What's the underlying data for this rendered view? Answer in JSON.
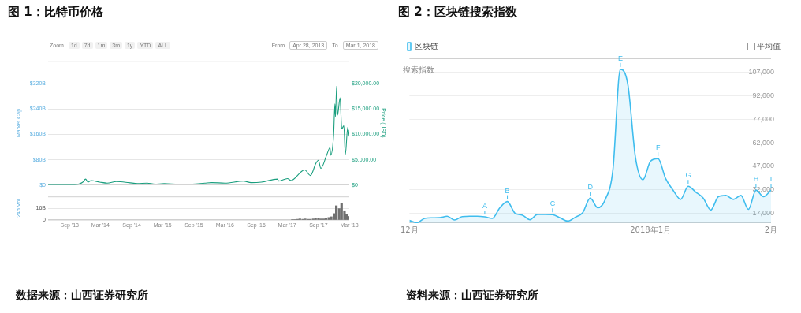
{
  "chart_data": [
    {
      "type": "line",
      "title": "图 1：比特币价格",
      "ylabel": "Market Cap",
      "y2label": "Price (USD)",
      "annotations": [
        "Zoom",
        "1d",
        "7d",
        "1m",
        "3m",
        "1y",
        "YTD",
        "ALL",
        "From",
        "Apr 28, 2013",
        "To",
        "Mar 1, 2018",
        "数据来源：山西证券研究所"
      ],
      "x": [
        "2013-04-28",
        "2013-07-05",
        "2013-10-01",
        "2013-11-18",
        "2013-12-04",
        "2013-12-18",
        "2014-01-05",
        "2014-02-25",
        "2014-04-10",
        "2014-06-03",
        "2014-08-15",
        "2014-10-05",
        "2014-12-01",
        "2015-01-14",
        "2015-03-10",
        "2015-06-01",
        "2015-08-24",
        "2015-11-04",
        "2015-12-15",
        "2016-03-01",
        "2016-06-17",
        "2016-08-02",
        "2016-10-01",
        "2017-01-04",
        "2017-01-11",
        "2017-03-03",
        "2017-03-24",
        "2017-05-25",
        "2017-06-12",
        "2017-07-16",
        "2017-08-17",
        "2017-09-01",
        "2017-09-15",
        "2017-10-20",
        "2017-11-08",
        "2017-11-12",
        "2017-11-29",
        "2017-12-07",
        "2017-12-10",
        "2017-12-17",
        "2017-12-22",
        "2018-01-06",
        "2018-01-16",
        "2018-01-28",
        "2018-02-06",
        "2018-02-20",
        "2018-02-24",
        "2018-03-01"
      ],
      "series": [
        {
          "color": "#1a9e7e",
          "axis": "y2",
          "values": [
            100,
            100,
            100,
            600,
            1200,
            600,
            900,
            600,
            400,
            700,
            500,
            300,
            400,
            200,
            300,
            200,
            200,
            400,
            500,
            400,
            800,
            500,
            600,
            1200,
            800,
            1300,
            900,
            2700,
            3000,
            1900,
            4300,
            4900,
            3300,
            6000,
            7400,
            5900,
            9800,
            16000,
            13500,
            19500,
            13800,
            17200,
            11100,
            11700,
            6000,
            11400,
            9600,
            10900
          ]
        }
      ],
      "xlim": [
        "2013-04-28",
        "2018-03-01"
      ],
      "ylim": [
        0,
        392
      ],
      "yticks": [
        {
          "value": 0,
          "label": "$0"
        },
        {
          "value": 80,
          "label": "$80B"
        },
        {
          "value": 160,
          "label": "$160B"
        },
        {
          "value": 240,
          "label": "$240B"
        },
        {
          "value": 320,
          "label": "$320B"
        }
      ],
      "y2lim": [
        0,
        24500
      ],
      "y2ticks": [
        {
          "value": 0,
          "label": "$0"
        },
        {
          "value": 5000,
          "label": "$5,000.00"
        },
        {
          "value": 10000,
          "label": "$10,000.00"
        },
        {
          "value": 15000,
          "label": "$15,000.00"
        },
        {
          "value": 20000,
          "label": "$20,000.00"
        }
      ],
      "grid": "y",
      "tick_labels": "y",
      "marker": "none"
    },
    {
      "type": "bar",
      "ylabel": "24h Vol",
      "color": "#707070",
      "x": [
        "2017-04-01",
        "2017-04-15",
        "2017-05-01",
        "2017-05-15",
        "2017-06-01",
        "2017-06-15",
        "2017-07-01",
        "2017-07-15",
        "2017-08-01",
        "2017-08-15",
        "2017-09-01",
        "2017-09-15",
        "2017-10-01",
        "2017-10-15",
        "2017-11-01",
        "2017-11-15",
        "2017-12-01",
        "2017-12-15",
        "2018-01-01",
        "2018-01-15",
        "2018-02-01",
        "2018-02-13",
        "2018-02-25"
      ],
      "values": [
        0.5,
        0.5,
        1,
        1.5,
        1,
        1.5,
        1,
        1,
        1.5,
        2.5,
        2,
        1.5,
        1.5,
        2,
        3.5,
        4.5,
        9,
        20,
        16,
        23,
        13,
        8,
        5
      ],
      "xlim": [
        "2013-04-28",
        "2018-03-01"
      ],
      "xticks": [
        {
          "value": "2013-09-01",
          "label": "Sep '13"
        },
        {
          "value": "2014-03-01",
          "label": "Mar '14"
        },
        {
          "value": "2014-09-01",
          "label": "Sep '14"
        },
        {
          "value": "2015-03-01",
          "label": "Mar '15"
        },
        {
          "value": "2015-09-01",
          "label": "Sep '15"
        },
        {
          "value": "2016-03-01",
          "label": "Mar '16"
        },
        {
          "value": "2016-09-01",
          "label": "Sep '16"
        },
        {
          "value": "2017-03-01",
          "label": "Mar '17"
        },
        {
          "value": "2017-09-01",
          "label": "Sep '17"
        },
        {
          "value": "2018-03-01",
          "label": "Mar '18"
        }
      ],
      "ylim": [
        0,
        33
      ],
      "yticks": [
        0,
        {
          "value": 16,
          "label": "16B"
        }
      ],
      "grid": "y"
    },
    {
      "type": "area",
      "title": "图 2：区块链搜索指数",
      "ylabel": "搜索指数",
      "legend": "top left",
      "marker": "none",
      "annotations": [
        {
          "text": "A",
          "x": "2017-11-18",
          "y": 14600
        },
        {
          "text": "B",
          "x": "2017-11-24",
          "y": 24400
        },
        {
          "text": "C",
          "x": "2017-12-06",
          "y": 16000
        },
        {
          "text": "D",
          "x": "2017-12-16",
          "y": 26600
        },
        {
          "text": "E",
          "x": "2017-12-24",
          "y": 109000
        },
        {
          "text": "F",
          "x": "2018-01-03",
          "y": 51900
        },
        {
          "text": "G",
          "x": "2018-01-11",
          "y": 34200
        },
        {
          "text": "H",
          "x": "2018-01-29",
          "y": 31700
        },
        {
          "text": "I",
          "x": "2018-02-02",
          "y": 31700
        },
        "平均值",
        "资料来源：山西证券研究所"
      ],
      "x": [
        "2017-10-29",
        "2017-10-31",
        "2017-11-02",
        "2017-11-04",
        "2017-11-06",
        "2017-11-08",
        "2017-11-10",
        "2017-11-12",
        "2017-11-14",
        "2017-11-16",
        "2017-11-18",
        "2017-11-20",
        "2017-11-22",
        "2017-11-24",
        "2017-11-26",
        "2017-11-28",
        "2017-11-30",
        "2017-12-02",
        "2017-12-04",
        "2017-12-06",
        "2017-12-08",
        "2017-12-10",
        "2017-12-12",
        "2017-12-14",
        "2017-12-16",
        "2017-12-18",
        "2017-12-20",
        "2017-12-22",
        "2017-12-24",
        "2017-12-26",
        "2017-12-28",
        "2017-12-30",
        "2018-01-01",
        "2018-01-03",
        "2018-01-05",
        "2018-01-07",
        "2018-01-09",
        "2018-01-11",
        "2018-01-13",
        "2018-01-15",
        "2018-01-17",
        "2018-01-19",
        "2018-01-21",
        "2018-01-23",
        "2018-01-25",
        "2018-01-27",
        "2018-01-29",
        "2018-01-31",
        "2018-02-02"
      ],
      "series": [
        {
          "name": "区块链",
          "color": "#3fbdee",
          "values": [
            12300,
            10900,
            13600,
            14000,
            14100,
            15000,
            12600,
            14800,
            15000,
            15000,
            14600,
            13600,
            20400,
            24400,
            17000,
            15700,
            12800,
            16200,
            16200,
            16000,
            14000,
            11900,
            14300,
            17300,
            26600,
            20400,
            25800,
            44300,
            109000,
            99100,
            52700,
            38400,
            50200,
            51900,
            39200,
            31700,
            25800,
            34200,
            30500,
            26600,
            19000,
            27500,
            28300,
            25800,
            28300,
            19400,
            31700,
            27500,
            31700
          ]
        }
      ],
      "xlim": [
        "2017-10-29",
        "2018-02-02"
      ],
      "xticks": [
        {
          "value": "2017-10-29",
          "label": "12月"
        },
        {
          "value": "2018-01-01",
          "label": "2018年1月"
        },
        {
          "value": "2018-02-02",
          "label": "2月"
        }
      ],
      "ylim": [
        10600,
        116000
      ],
      "yticks": [
        {
          "value": 17000,
          "label": "17,000"
        },
        {
          "value": 32000,
          "label": "32,000"
        },
        {
          "value": 47000,
          "label": "47,000"
        },
        {
          "value": 62000,
          "label": "62,000"
        },
        {
          "value": 77000,
          "label": "77,000"
        },
        {
          "value": 92000,
          "label": "92,000"
        },
        {
          "value": 107000,
          "label": "107,000"
        }
      ],
      "grid": "y"
    }
  ]
}
